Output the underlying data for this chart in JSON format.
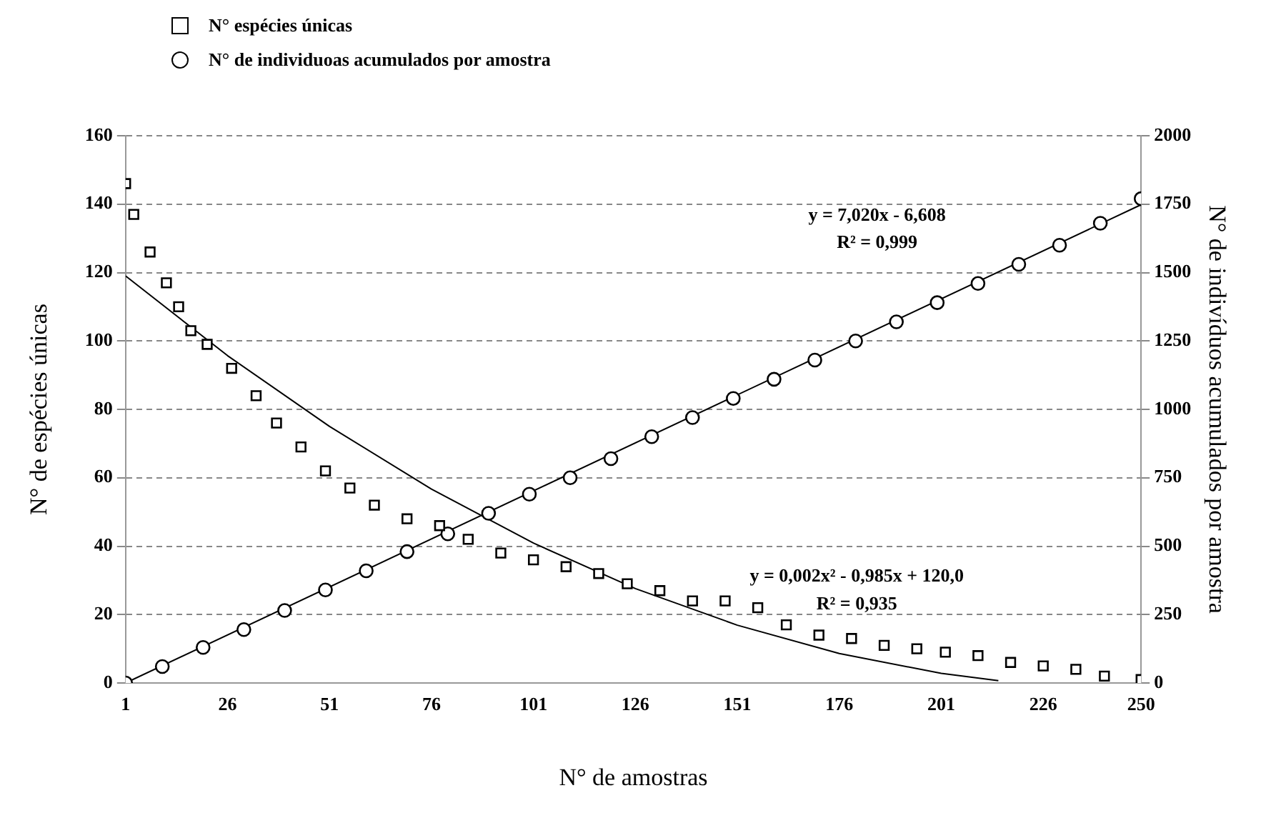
{
  "chart_data": {
    "type": "scatter",
    "xlabel": "N° de amostras",
    "ylabel": "N° de espécies únicas",
    "y2label": "N° de indivíduos acumulados por amostra",
    "xlim": [
      1,
      250
    ],
    "xticks": [
      1,
      26,
      51,
      76,
      101,
      126,
      151,
      176,
      201,
      226,
      250
    ],
    "ylim": [
      0,
      160
    ],
    "yticks": [
      0,
      20,
      40,
      60,
      80,
      100,
      120,
      140,
      160
    ],
    "y2lim": [
      0,
      2000
    ],
    "y2ticks": [
      0,
      250,
      500,
      750,
      1000,
      1250,
      1500,
      1750,
      2000
    ],
    "grid": "y",
    "legend": "top left",
    "series": [
      {
        "name": "N° espécies únicas",
        "marker": "square",
        "color": "#000000",
        "x": [
          1,
          3,
          7,
          11,
          14,
          17,
          21,
          27,
          33,
          38,
          44,
          50,
          56,
          62,
          70,
          78,
          85,
          93,
          101,
          109,
          117,
          124,
          132,
          140,
          148,
          156,
          163,
          171,
          179,
          187,
          195,
          202,
          210,
          218,
          226,
          234,
          241,
          250
        ],
        "values": [
          146,
          137,
          126,
          117,
          110,
          103,
          99,
          92,
          84,
          76,
          69,
          62,
          57,
          52,
          48,
          46,
          42,
          38,
          36,
          34,
          32,
          29,
          27,
          24,
          24,
          22,
          17,
          14,
          13,
          11,
          10,
          9,
          8,
          6,
          5,
          4,
          2,
          1
        ]
      },
      {
        "name": "N° de individuoas acumulados por amostra",
        "marker": "circle",
        "axis": "y2",
        "color": "#000000",
        "x": [
          1,
          10,
          20,
          30,
          40,
          50,
          60,
          70,
          80,
          90,
          100,
          110,
          120,
          130,
          140,
          150,
          160,
          170,
          180,
          190,
          200,
          210,
          220,
          230,
          240,
          250
        ],
        "values": [
          0,
          60,
          130,
          195,
          265,
          340,
          410,
          480,
          545,
          620,
          690,
          750,
          820,
          900,
          970,
          1040,
          1110,
          1180,
          1250,
          1320,
          1390,
          1460,
          1530,
          1600,
          1680,
          1770
        ]
      },
      {
        "type": "line",
        "marker": "none",
        "color": "#000000",
        "x": [
          1,
          26,
          51,
          76,
          101,
          126,
          151,
          176,
          201,
          215
        ],
        "values": [
          119.0,
          95.7,
          75.0,
          56.7,
          40.9,
          27.6,
          16.9,
          8.6,
          2.8,
          0.7
        ]
      },
      {
        "type": "line",
        "marker": "none",
        "axis": "y2",
        "color": "#000000",
        "x": [
          1,
          250
        ],
        "values": [
          0,
          1748
        ]
      }
    ],
    "annotations": [
      "y = 7,020x - 6,608",
      "R² = 0,999",
      "y = 0,002x² - 0,985x + 120,0",
      "R² = 0,935"
    ]
  }
}
